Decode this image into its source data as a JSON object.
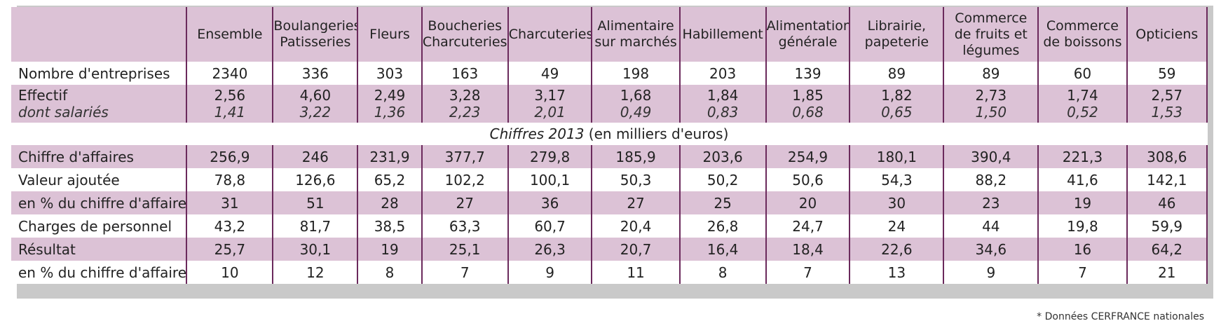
{
  "columns": [
    "",
    "Ensemble",
    "Boulangeries\nPatisseries",
    "Fleurs",
    "Boucheries\nCharcuteries",
    "Charcuteries",
    "Alimentaire\nsur marchés",
    "Habillement",
    "Alimentation\ngénérale",
    "Librairie,\npapeterie",
    "Commerce\nde fruits et\nlégumes",
    "Commerce\nde boissons",
    "Opticiens"
  ],
  "rows_top": [
    {
      "label": "Nombre d'entreprises",
      "values": [
        "2340",
        "336",
        "303",
        "163",
        "49",
        "198",
        "203",
        "139",
        "89",
        "89",
        "60",
        "59"
      ]
    }
  ],
  "effectif": {
    "label": "Effectif",
    "sublabel": "dont salariés",
    "values": [
      "2,56",
      "4,60",
      "2,49",
      "3,28",
      "3,17",
      "1,68",
      "1,84",
      "1,85",
      "1,82",
      "2,73",
      "1,74",
      "2,57"
    ],
    "subvalues": [
      "1,41",
      "3,22",
      "1,36",
      "2,23",
      "2,01",
      "0,49",
      "0,83",
      "0,68",
      "0,65",
      "1,50",
      "0,52",
      "1,53"
    ]
  },
  "section": {
    "italic": "Chiffres 2013",
    "rest": " (en milliers d'euros)"
  },
  "rows_bottom": [
    {
      "label": "Chiffre d'affaires",
      "values": [
        "256,9",
        "246",
        "231,9",
        "377,7",
        "279,8",
        "185,9",
        "203,6",
        "254,9",
        "180,1",
        "390,4",
        "221,3",
        "308,6"
      ]
    },
    {
      "label": "Valeur ajoutée",
      "values": [
        "78,8",
        "126,6",
        "65,2",
        "102,2",
        "100,1",
        "50,3",
        "50,2",
        "50,6",
        "54,3",
        "88,2",
        "41,6",
        "142,1"
      ]
    },
    {
      "label": "en % du chiffre d'affaires",
      "values": [
        "31",
        "51",
        "28",
        "27",
        "36",
        "27",
        "25",
        "20",
        "30",
        "23",
        "19",
        "46"
      ]
    },
    {
      "label": "Charges de personnel",
      "values": [
        "43,2",
        "81,7",
        "38,5",
        "63,3",
        "60,7",
        "20,4",
        "26,8",
        "24,7",
        "24",
        "44",
        "19,8",
        "59,9"
      ]
    },
    {
      "label": "Résultat",
      "values": [
        "25,7",
        "30,1",
        "19",
        "25,1",
        "26,3",
        "20,7",
        "16,4",
        "18,4",
        "22,6",
        "34,6",
        "16",
        "64,2"
      ]
    },
    {
      "label": "en % du chiffre d'affaires",
      "values": [
        "10",
        "12",
        "8",
        "7",
        "9",
        "11",
        "8",
        "7",
        "13",
        "9",
        "7",
        "21"
      ]
    }
  ],
  "footnote": "* Données CERFRANCE nationales"
}
